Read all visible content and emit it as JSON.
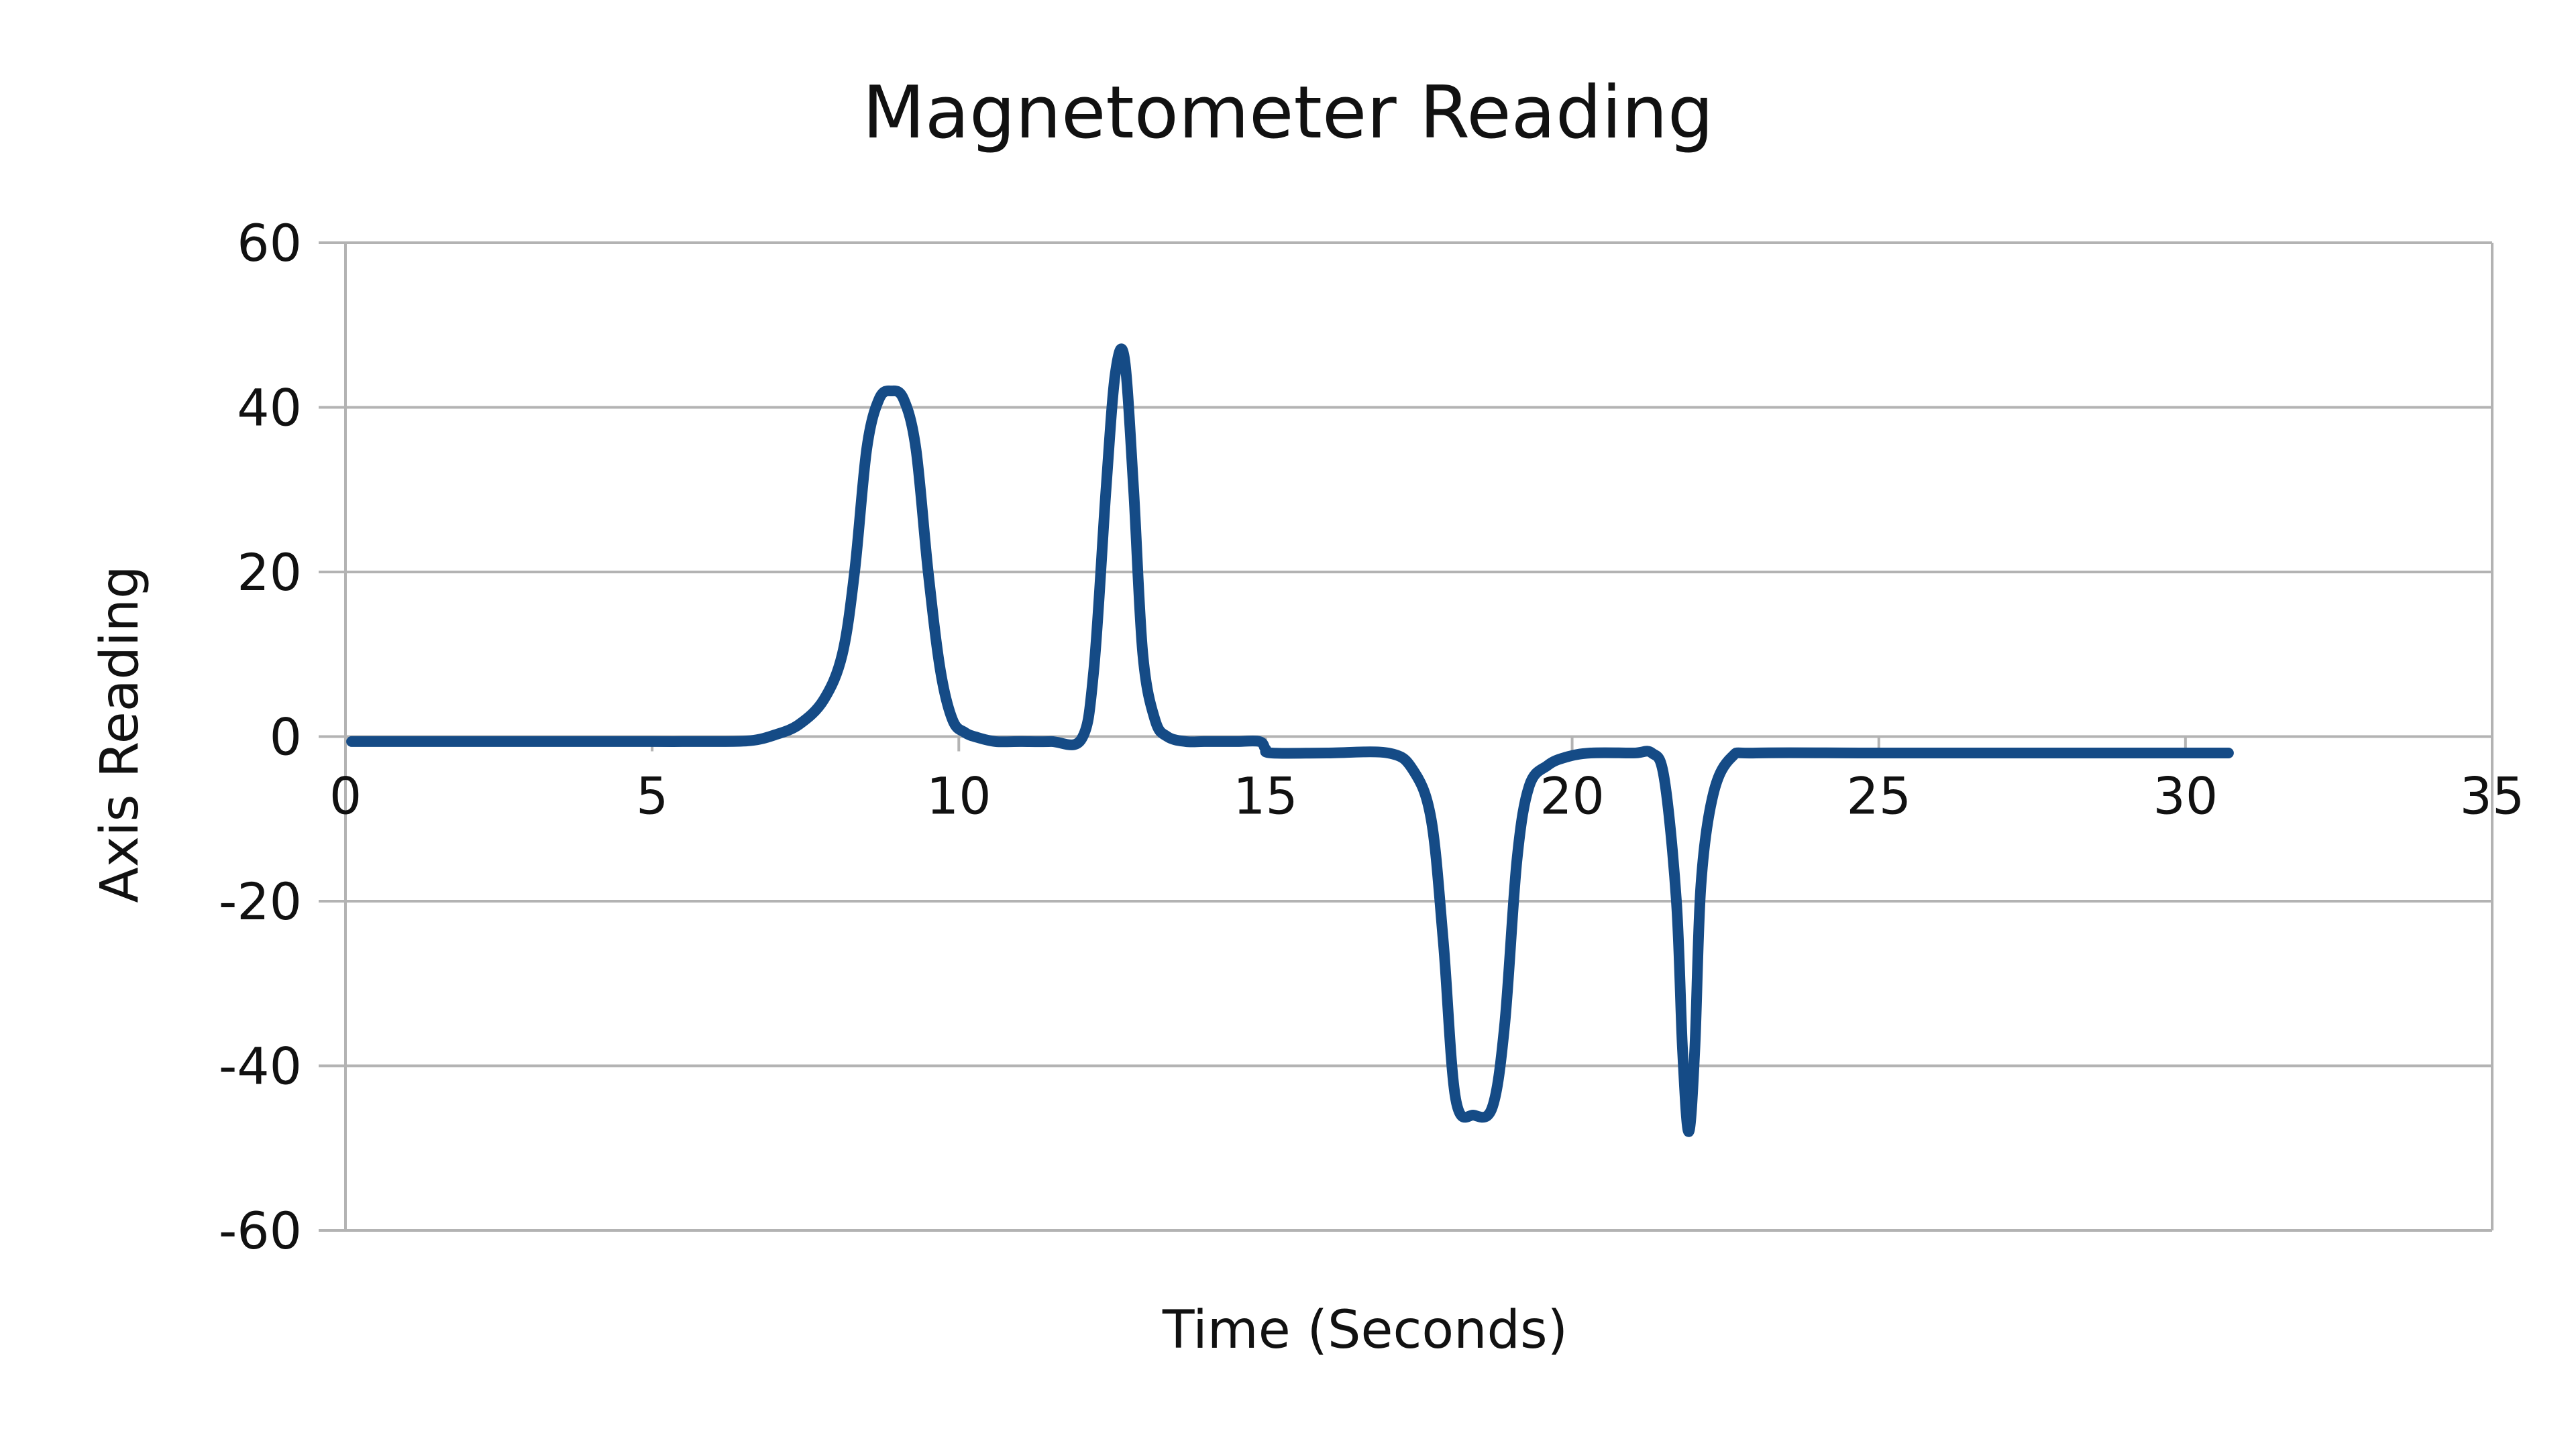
{
  "chart_data": {
    "type": "line",
    "title": "Magnetometer Reading",
    "xlabel": "Time (Seconds)",
    "ylabel": "Axis Reading",
    "xlim": [
      0,
      35
    ],
    "ylim": [
      -60,
      60
    ],
    "x_ticks": [
      "0",
      "5",
      "10",
      "15",
      "20",
      "25",
      "30",
      "35"
    ],
    "y_ticks": [
      "60",
      "40",
      "20",
      "0",
      "-20",
      "-40",
      "-60"
    ],
    "grid": "horizontal",
    "legend": "none",
    "series": [
      {
        "color": "#154b86",
        "x": [
          0.1,
          1,
          2,
          3,
          4,
          5,
          6,
          6.6,
          7,
          7.4,
          7.8,
          8.1,
          8.3,
          8.5,
          8.7,
          8.9,
          9.1,
          9.3,
          9.5,
          9.7,
          9.9,
          10.1,
          10.3,
          10.6,
          11,
          11.5,
          12,
          12.2,
          12.4,
          12.55,
          12.7,
          12.85,
          13.0,
          13.2,
          13.4,
          13.7,
          14,
          14.5,
          14.9,
          15.0,
          15.1,
          16,
          17,
          17.4,
          17.7,
          17.9,
          18.1,
          18.4,
          18.7,
          18.9,
          19.1,
          19.3,
          19.6,
          19.9,
          20.3,
          21,
          21.3,
          21.5,
          21.7,
          21.8,
          21.9,
          22.0,
          22.1,
          22.3,
          22.6,
          23,
          25,
          28,
          30.7
        ],
        "values": [
          -0.6,
          -0.6,
          -0.6,
          -0.6,
          -0.6,
          -0.6,
          -0.6,
          -0.5,
          0.2,
          1.5,
          4.5,
          10,
          20,
          35,
          41,
          42,
          41,
          35,
          20,
          8,
          2,
          0.5,
          -0.1,
          -0.6,
          -0.6,
          -0.6,
          -0.3,
          8,
          30,
          44,
          46,
          30,
          10,
          2,
          0,
          -0.6,
          -0.6,
          -0.6,
          -0.6,
          -1.5,
          -2,
          -2,
          -2,
          -4,
          -10,
          -25,
          -44,
          -46,
          -45,
          -35,
          -15,
          -6,
          -3.5,
          -2.5,
          -2,
          -2,
          -2,
          -5,
          -20,
          -38,
          -48,
          -38,
          -18,
          -7,
          -2.5,
          -2,
          -2,
          -2,
          -2
        ]
      }
    ]
  }
}
